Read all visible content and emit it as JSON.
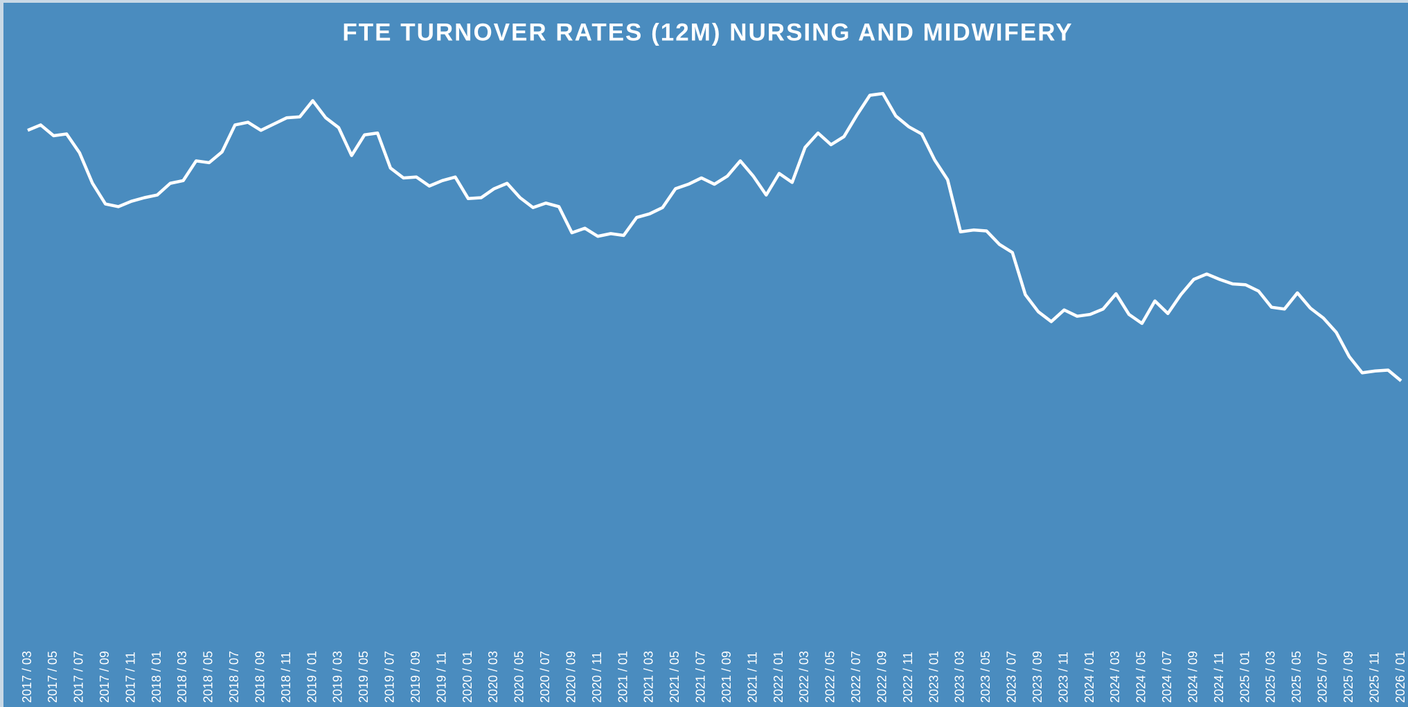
{
  "chart_data": {
    "type": "line",
    "title": "FTE TURNOVER RATES (12M) NURSING AND MIDWIFERY",
    "categories": [
      "2017 / 03",
      null,
      "2017 / 05",
      null,
      "2017 / 07",
      null,
      "2017 / 09",
      null,
      "2017 / 11",
      null,
      "2018 / 01",
      null,
      "2018 / 03",
      null,
      "2018 / 05",
      null,
      "2018 / 07",
      null,
      "2018 / 09",
      null,
      "2018 / 11",
      null,
      "2019 / 01",
      null,
      "2019 / 03",
      null,
      "2019 / 05",
      null,
      "2019 / 07",
      null,
      "2019 / 09",
      null,
      "2019 / 11",
      null,
      "2020 / 01",
      null,
      "2020 / 03",
      null,
      "2020 / 05",
      null,
      "2020 / 07",
      null,
      "2020 / 09",
      null,
      "2020 / 11",
      null,
      "2021 / 01",
      null,
      "2021 / 03",
      null,
      "2021 / 05",
      null,
      "2021 / 07",
      null,
      "2021 / 09",
      null,
      "2021 / 11",
      null,
      "2022 / 01",
      null,
      "2022 / 03",
      null,
      "2022 / 05",
      null,
      "2022 / 07",
      null,
      "2022 / 09",
      null,
      "2022 / 11",
      null,
      "2023 / 01",
      null,
      "2023 / 03",
      null,
      "2023 / 05",
      null,
      "2023 / 07",
      null,
      "2023 / 09",
      null,
      "2023 / 11",
      null,
      "2024 / 01",
      null,
      "2024 / 03",
      null,
      "2024 / 05",
      null,
      "2024 / 07",
      null,
      "2024 / 09",
      null,
      "2024 / 11",
      null,
      "2025 / 01",
      null,
      "2025 / 03",
      null,
      "2025 / 05",
      null,
      "2025 / 07",
      null,
      "2025 / 09",
      null,
      "2025 / 11",
      null,
      "2026 / 01"
    ],
    "values": [
      545,
      551,
      539,
      541,
      520,
      486,
      463,
      460,
      466,
      470,
      473,
      486,
      489,
      511,
      509,
      521,
      551,
      554,
      545,
      552,
      559,
      560,
      578,
      559,
      548,
      517,
      540,
      542,
      503,
      492,
      493,
      483,
      489,
      493,
      469,
      470,
      480,
      486,
      470,
      459,
      464,
      460,
      431,
      436,
      427,
      430,
      428,
      448,
      452,
      459,
      480,
      485,
      492,
      485,
      494,
      511,
      494,
      473,
      497,
      487,
      526,
      542,
      529,
      538,
      562,
      584,
      586,
      561,
      549,
      541,
      512,
      490,
      432,
      434,
      433,
      418,
      409,
      362,
      343,
      332,
      345,
      338,
      340,
      346,
      363,
      340,
      330,
      355,
      341,
      362,
      379,
      385,
      379,
      374,
      373,
      366,
      348,
      346,
      364,
      347,
      336,
      320,
      293,
      275,
      277,
      278,
      266
    ],
    "color": "#ffffff",
    "ylim": [
      0,
      630
    ]
  }
}
